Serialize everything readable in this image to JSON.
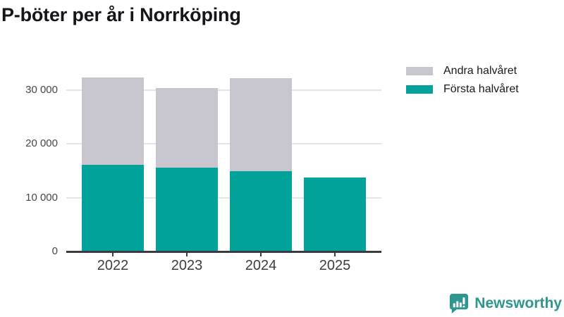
{
  "title": "P-böter per år i Norrköping",
  "chart_data": {
    "type": "bar",
    "stacked": true,
    "categories": [
      "2022",
      "2023",
      "2024",
      "2025"
    ],
    "series": [
      {
        "name": "Första halvåret",
        "color": "#00a29a",
        "values": [
          16100,
          15500,
          14900,
          13700
        ]
      },
      {
        "name": "Andra halvåret",
        "color": "#c7c5ce",
        "values": [
          16200,
          14800,
          17200,
          0
        ]
      }
    ],
    "totals": [
      32300,
      30300,
      32100,
      13700
    ],
    "xlabel": "",
    "ylabel": "",
    "ylim": [
      0,
      34000
    ],
    "yticks": [
      0,
      10000,
      20000,
      30000
    ],
    "ytick_labels": [
      "0",
      "10 000",
      "20 000",
      "30 000"
    ],
    "grid": "horizontal",
    "legend_position": "top-right"
  },
  "colors": {
    "first_half": "#00a29a",
    "second_half": "#c7c5ce",
    "axis": "#3a3a40",
    "gridline": "#e5e4e8",
    "brand": "#2f968f"
  },
  "footer": {
    "brand": "Newsworthy"
  }
}
